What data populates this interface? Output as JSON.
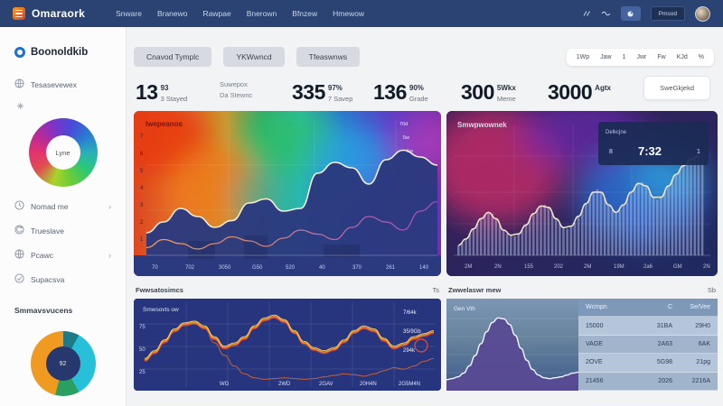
{
  "topnav": {
    "brand": "Omaraork",
    "items": [
      "Snware",
      "Branewo",
      "Rawpae",
      "Bnerown",
      "Bfnzew",
      "Hmewow"
    ],
    "login_label": "Pmsod",
    "colors": {
      "bar": "#2b4372",
      "logo_orange": "#e06020"
    }
  },
  "sidebar": {
    "logo_text": "Boonoldkib",
    "primary_item": {
      "icon": "globe-icon",
      "label": "Tesasevewex"
    },
    "donut1": {
      "center_label": "Lyne",
      "colors": [
        "#e4326e",
        "#b82a9a",
        "#7a34c8",
        "#4a4ad8",
        "#2a7ad0",
        "#2ab0b8",
        "#2ac878",
        "#66cc3a",
        "#a8d42a",
        "#e05050"
      ]
    },
    "menu": [
      {
        "icon": "clock-icon",
        "label": "Nomad me",
        "chevron": true
      },
      {
        "icon": "refresh-icon",
        "label": "Trueslave",
        "chevron": false
      },
      {
        "icon": "globe-icon",
        "label": "Pcawc",
        "chevron": true
      },
      {
        "icon": "check-icon",
        "label": "Supacsva",
        "chevron": false
      }
    ],
    "section_label": "Smmavsvucens",
    "donut2": {
      "center_label": "92",
      "segments": [
        {
          "color": "#1f7a88",
          "from": 0,
          "to": 8
        },
        {
          "color": "#28c0d8",
          "from": 8,
          "to": 42
        },
        {
          "color": "#2aa060",
          "from": 42,
          "to": 54
        },
        {
          "color": "#f09a22",
          "from": 54,
          "to": 100
        }
      ]
    }
  },
  "header": {
    "tabs": [
      "Cnavod Tymplc",
      "YKWwncd",
      "Tfeaswnws"
    ],
    "range_options": [
      "1Wp",
      "Jaw",
      "1",
      "Jwr",
      "Fw",
      "KJd",
      "%"
    ]
  },
  "stats": {
    "items": [
      {
        "value": "13",
        "sup": "93",
        "sub": "3 Stayed"
      },
      {
        "lines": [
          "Suwepox",
          "Da Stewnc"
        ]
      },
      {
        "value": "335",
        "sup": "97%",
        "sub": "7 Savep"
      },
      {
        "value": "136",
        "sup": "90%",
        "sub": "Grade"
      },
      {
        "value": "300",
        "sup": "5Wkx",
        "sub": "Meme"
      },
      {
        "value": "3000",
        "sup": "Agtx",
        "sub": ""
      }
    ],
    "action_label": "SweGkjekd"
  },
  "charts": {
    "flame": {
      "type": "line",
      "title": "Iwepeanos",
      "corner_labels": [
        "70d",
        "5w",
        "1w"
      ],
      "y_ticks": [
        "7",
        "6",
        "5",
        "4",
        "3",
        "2",
        "1"
      ],
      "x_ticks": [
        "70",
        "702",
        "3050",
        "G50",
        "520",
        "40",
        "370",
        "261",
        "140"
      ],
      "series_main": [
        18,
        26,
        36,
        30,
        22,
        27,
        40,
        43,
        34,
        36,
        62,
        70,
        66,
        54,
        72,
        79,
        74,
        68
      ],
      "series_low": [
        7,
        13,
        10,
        6,
        10,
        15,
        12,
        8,
        14,
        20,
        17,
        13,
        22,
        30,
        26,
        20,
        34,
        41
      ],
      "area_color": "#2b3a7e",
      "line_color": "#f5eed6"
    },
    "bars": {
      "type": "bar",
      "title": "Smwpwownek",
      "legend": {
        "label": "Delkcjne",
        "left": "8",
        "value": "7:32",
        "right": "1"
      },
      "x_ticks": [
        "2M",
        "2N",
        "155",
        "202",
        "2M",
        "19M",
        "2a6",
        "GM",
        "2N"
      ],
      "series": [
        8,
        10,
        13,
        17,
        21,
        25,
        29,
        32,
        34,
        33,
        29,
        24,
        20,
        17,
        16,
        15,
        17,
        20,
        24,
        29,
        33,
        37,
        39,
        40,
        38,
        34,
        29,
        25,
        22,
        21,
        23,
        26,
        31,
        36,
        41,
        46,
        50,
        52,
        50,
        45,
        40,
        36,
        34,
        36,
        40,
        45,
        50,
        54,
        57,
        58,
        55,
        50,
        46,
        44,
        46,
        50,
        55,
        60,
        64,
        68,
        71,
        74,
        76,
        78,
        79,
        80
      ],
      "bar_color": "#aab4dc",
      "line_color": "#f0e8cc"
    },
    "wave": {
      "type": "line",
      "header": "Fwwsatosimcs",
      "header_right": "Ts",
      "inner_label": "Smwsovts ow",
      "y_left": [
        "75",
        "50",
        "25"
      ],
      "right_labels": [
        "7/64k",
        "35/9Gb",
        "294k"
      ],
      "bottom_labels": [
        "WG",
        "2WD",
        "2GAV",
        "20H4N",
        "2G5M4N"
      ],
      "series_a": [
        72,
        62,
        48,
        34,
        26,
        24,
        30,
        44,
        56,
        52,
        44,
        30,
        20,
        16,
        22,
        36,
        50,
        58,
        62,
        58,
        48,
        36,
        30,
        34,
        46,
        56,
        52,
        44,
        40,
        36
      ],
      "series_b": [
        72,
        62,
        48,
        34,
        26,
        24,
        30,
        50,
        66,
        80,
        90,
        95,
        97,
        96,
        95,
        96,
        97,
        96,
        94,
        92,
        90,
        91,
        93,
        90,
        86,
        82,
        84,
        80,
        74,
        70
      ],
      "bg_color": "#26357e",
      "line_colors": [
        "#ffd860",
        "#f08c2c",
        "#d8443a"
      ]
    },
    "dist": {
      "type": "area",
      "header": "Zwwelaswr mew",
      "header_right": "Sb",
      "inner_label": "Gen Vth",
      "series": [
        88,
        87,
        85,
        81,
        73,
        62,
        49,
        36,
        26,
        21,
        22,
        28,
        40,
        54,
        67,
        77,
        83,
        86,
        87,
        86,
        85,
        83,
        81,
        80
      ],
      "fill_color": "#584a94",
      "table": {
        "headers": [
          "Wcmpn",
          "C",
          "Se/Vee"
        ],
        "rows": [
          [
            "15000",
            "31BA",
            "29H0"
          ],
          [
            "VAGE",
            "2A63",
            "6AK"
          ],
          [
            "2OVE",
            "5G98",
            "21pg"
          ],
          [
            "21456",
            "2026",
            "2216A"
          ]
        ]
      }
    }
  }
}
